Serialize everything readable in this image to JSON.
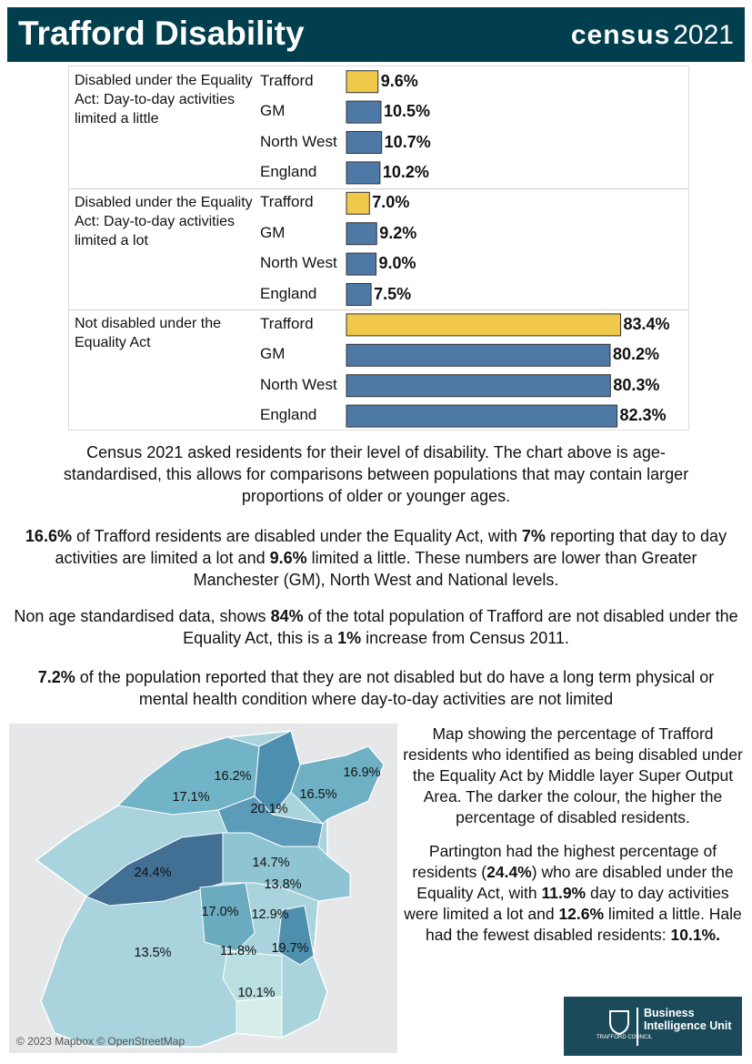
{
  "header": {
    "title": "Trafford Disability",
    "logo_word": "census",
    "logo_year": "2021"
  },
  "chart_data": {
    "type": "bar",
    "orientation": "horizontal",
    "xlim": [
      0,
      104
    ],
    "colors": [
      "#f0c94b",
      "#4e79a7",
      "#4e79a7",
      "#4e79a7"
    ],
    "groups": [
      {
        "label": "Disabled under the Equality Act: Day-to-day activities limited a little",
        "categories": [
          "Trafford",
          "GM",
          "North West",
          "England"
        ],
        "values": [
          9.6,
          10.5,
          10.7,
          10.2
        ],
        "value_labels": [
          "9.6%",
          "10.5%",
          "10.7%",
          "10.2%"
        ]
      },
      {
        "label": "Disabled under the Equality Act: Day-to-day activities limited a lot",
        "categories": [
          "Trafford",
          "GM",
          "North West",
          "England"
        ],
        "values": [
          7.0,
          9.2,
          9.0,
          7.5
        ],
        "value_labels": [
          "7.0%",
          "9.2%",
          "9.0%",
          "7.5%"
        ]
      },
      {
        "label": "Not disabled under the Equality Act",
        "categories": [
          "Trafford",
          "GM",
          "North West",
          "England"
        ],
        "values": [
          83.4,
          80.2,
          80.3,
          82.3
        ],
        "value_labels": [
          "83.4%",
          "80.2%",
          "80.3%",
          "82.3%"
        ]
      }
    ]
  },
  "text": {
    "paragraphs": [
      [
        {
          "text": "Census 2021 asked residents for their level of disability. The chart above is age-standardised, this allows for comparisons between populations that may contain larger proportions of older or younger ages."
        }
      ],
      [
        {
          "text": "16.6%",
          "bold": true
        },
        {
          "text": " of Trafford residents are disabled under the Equality Act, with "
        },
        {
          "text": "7%",
          "bold": true
        },
        {
          "text": " reporting that day to day activities are limited a lot and "
        },
        {
          "text": "9.6%",
          "bold": true
        },
        {
          "text": " limited a little. These numbers are lower than Greater Manchester (GM), North West and National levels."
        }
      ],
      [
        {
          "text": "Non age standardised data, shows "
        },
        {
          "text": "84%",
          "bold": true
        },
        {
          "text": " of the total population of Trafford are not disabled under the Equality Act, this is a "
        },
        {
          "text": "1%",
          "bold": true
        },
        {
          "text": " increase from Census 2011."
        }
      ],
      [
        {
          "text": "7.2%",
          "bold": true
        },
        {
          "text": " of the population reported that they are not disabled but do have a long term physical or mental health condition where day-to-day activities are not limited"
        }
      ]
    ]
  },
  "map": {
    "labels": [
      "16.2%",
      "16.9%",
      "17.1%",
      "16.5%",
      "20.1%",
      "24.4%",
      "14.7%",
      "13.8%",
      "17.0%",
      "12.9%",
      "13.5%",
      "11.8%",
      "19.7%",
      "10.1%"
    ],
    "credit": "© 2023 Mapbox © OpenStreetMap"
  },
  "side": {
    "paragraphs": [
      [
        {
          "text": "Map showing the percentage of Trafford residents who identified as being disabled under the Equality Act by Middle layer Super Output Area. The darker the colour, the higher the percentage of disabled residents."
        }
      ],
      [
        {
          "text": "Partington had the highest percentage of residents ("
        },
        {
          "text": "24.4%",
          "bold": true
        },
        {
          "text": ") who are disabled under the Equality Act, with "
        },
        {
          "text": "11.9%",
          "bold": true
        },
        {
          "text": " day to day activities were limited a lot and "
        },
        {
          "text": "12.6%",
          "bold": true
        },
        {
          "text": " limited a little. Hale had the fewest disabled residents: "
        },
        {
          "text": "10.1%.",
          "bold": true
        }
      ]
    ]
  },
  "logo": {
    "council": "TRAFFORD COUNCIL",
    "unit": "Business Intelligence Unit"
  }
}
